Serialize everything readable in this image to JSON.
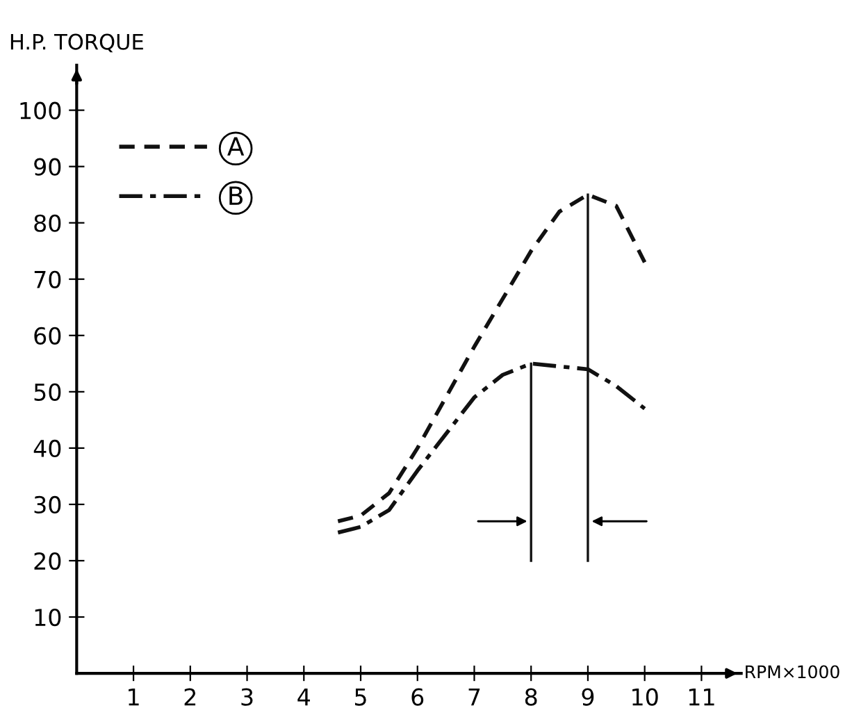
{
  "chart_data": {
    "type": "line",
    "ylabel": "H.P. TORQUE",
    "xlabel": "RPM×1000",
    "xlim": [
      0,
      11.7
    ],
    "ylim": [
      0,
      108
    ],
    "xticks": [
      1,
      2,
      3,
      4,
      5,
      6,
      7,
      8,
      9,
      10,
      11
    ],
    "yticks": [
      10,
      20,
      30,
      40,
      50,
      60,
      70,
      80,
      90,
      100
    ],
    "grid": false,
    "legend": "top left",
    "marker": "none",
    "series": [
      {
        "name": "A",
        "color": "#111111",
        "line_style": "dashed",
        "x": [
          4.6,
          5,
          5.5,
          6,
          7,
          8,
          8.5,
          9,
          9.5,
          10
        ],
        "values": [
          27,
          28,
          32,
          40,
          58,
          75,
          82,
          85,
          83,
          73
        ]
      },
      {
        "name": "B",
        "color": "#111111",
        "line_style": "dashdot",
        "x": [
          4.6,
          5,
          5.5,
          6,
          7,
          7.5,
          8,
          9,
          9.5,
          10
        ],
        "values": [
          25,
          26,
          29,
          36,
          49,
          53,
          55,
          54,
          51,
          47
        ]
      },
      {
        "color": "#111111",
        "line_style": "solid",
        "x": [
          8,
          8
        ],
        "values": [
          20,
          55
        ]
      },
      {
        "color": "#111111",
        "line_style": "solid",
        "x": [
          9,
          9
        ],
        "values": [
          20,
          85
        ]
      }
    ]
  }
}
